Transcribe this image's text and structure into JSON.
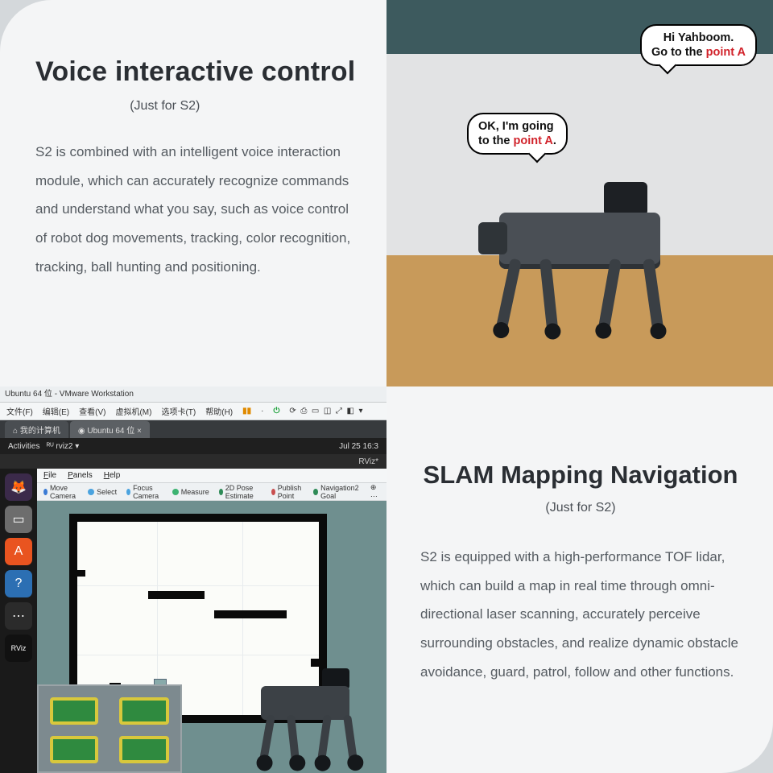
{
  "top": {
    "title": "Voice interactive control",
    "subtitle": "(Just for S2)",
    "body": "S2 is combined with an intelligent voice interaction module, which can accurately recognize commands and understand what you say, such as voice control of robot dog movements, tracking, color recognition, tracking, ball hunting and positioning.",
    "bubble1_a": "Hi Yahboom.",
    "bubble1_b": "Go to the ",
    "bubble1_hl": "point A",
    "bubble2_a": "OK, I'm going",
    "bubble2_b": "to the ",
    "bubble2_hl": "point A",
    "bubble2_end": "."
  },
  "bottom": {
    "title": "SLAM Mapping Navigation",
    "subtitle": "(Just for S2)",
    "body": "S2 is equipped with a high-performance TOF lidar, which can build a map in real time through omni-directional laser scanning, accurately perceive surrounding obstacles, and realize dynamic obstacle avoidance, guard, patrol, follow and other functions."
  },
  "vm": {
    "title": "Ubuntu 64 位 - VMware Workstation",
    "menu": [
      "文件(F)",
      "编辑(E)",
      "查看(V)",
      "虚拟机(M)",
      "选项卡(T)",
      "帮助(H)"
    ],
    "tab1": "我的计算机",
    "tab2": "Ubuntu 64 位",
    "activities": "Activities",
    "app": "rviz2",
    "date": "Jul 25  16:3",
    "apptitle": "RViz*",
    "rviz_menu": [
      "File",
      "Panels",
      "Help"
    ],
    "tools": [
      {
        "c": "#3a7bd5",
        "t": "Move Camera"
      },
      {
        "c": "#4aa3df",
        "t": "Select"
      },
      {
        "c": "#4aa3df",
        "t": "Focus Camera"
      },
      {
        "c": "#3cb371",
        "t": "Measure"
      },
      {
        "c": "#2e8b57",
        "t": "2D Pose Estimate"
      },
      {
        "c": "#c94f4f",
        "t": "Publish Point"
      },
      {
        "c": "#2e8b57",
        "t": "Navigation2 Goal"
      }
    ],
    "dock": [
      {
        "bg": "#3b2a4a",
        "g": "🦊"
      },
      {
        "bg": "#6d6d6d",
        "g": "▭"
      },
      {
        "bg": "#e95420",
        "g": "A"
      },
      {
        "bg": "#2c6fb3",
        "g": "?"
      },
      {
        "bg": "#2b2b2b",
        "g": "⋯"
      },
      {
        "bg": "#111",
        "g": "RViz"
      }
    ]
  },
  "colors": {
    "page_bg": "#d4d8db",
    "card_bg": "#f4f5f6",
    "heading": "#2a2e33",
    "body": "#555b61",
    "accent_red": "#d1222a",
    "rviz_canvas": "#6f8f8f",
    "map_border": "#0a0a0a"
  }
}
